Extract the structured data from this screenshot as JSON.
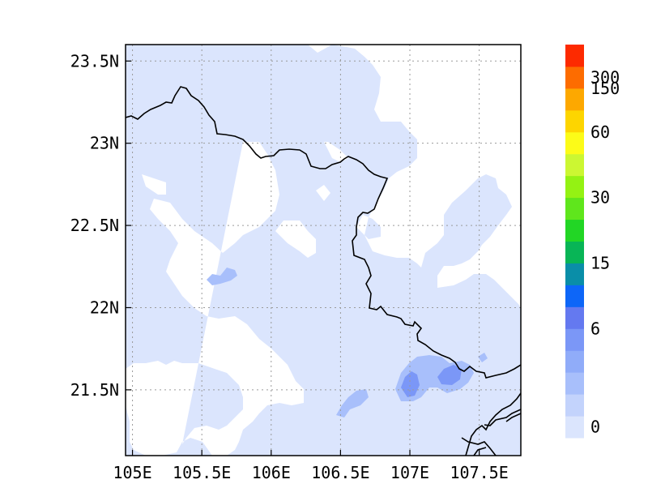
{
  "map": {
    "x_ticks": [
      "105E",
      "105.5E",
      "106E",
      "106.5E",
      "107E",
      "107.5E"
    ],
    "y_ticks": [
      "23.5N",
      "23N",
      "22.5N",
      "22N",
      "21.5N"
    ],
    "lon_values": [
      105.0,
      105.5,
      106.0,
      106.5,
      107.0,
      107.5
    ],
    "lat_values": [
      23.5,
      23.0,
      22.5,
      22.0,
      21.5
    ],
    "lon_range": [
      104.95,
      107.8
    ],
    "lat_range": [
      21.1,
      23.6
    ],
    "grid": "dotted",
    "land_fill_color": "#dbe5fd",
    "border_color": "#000000"
  },
  "colorbar": {
    "labels": [
      "0",
      "6",
      "15",
      "30",
      "60",
      "150",
      "300"
    ],
    "colors": [
      "#dbe5fd",
      "#c3d3fc",
      "#a8bffb",
      "#90acf9",
      "#7b97f7",
      "#6479f0",
      "#0d66f8",
      "#0a8ea8",
      "#08b556",
      "#22d625",
      "#5fe61c",
      "#94f213",
      "#ccf732",
      "#fcfb18",
      "#fdd500",
      "#fda800",
      "#fd6c00",
      "#fd2a00"
    ],
    "label_bins": [
      0,
      5,
      8,
      11,
      14,
      16
    ]
  },
  "highlights": {
    "color_medium": "#a8bffb",
    "color_strong": "#7b97f7"
  }
}
